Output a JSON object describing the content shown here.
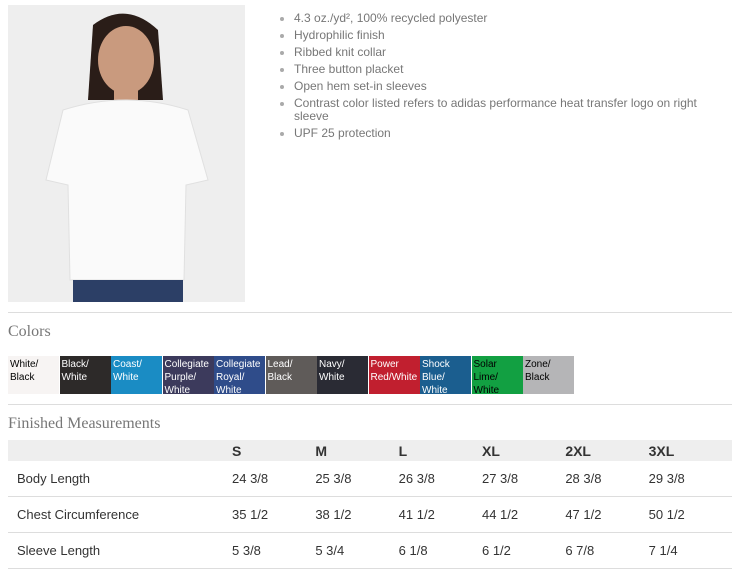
{
  "features": [
    "4.3 oz./yd², 100% recycled polyester",
    "Hydrophilic finish",
    "Ribbed knit collar",
    "Three button placket",
    "Open hem set-in sleeves",
    "Contrast color listed refers to adidas performance heat transfer logo on right sleeve",
    "UPF 25 protection"
  ],
  "colors_title": "Colors",
  "colors": [
    {
      "label": "White/ Black",
      "hex": "#f7f4f3",
      "text": "#000"
    },
    {
      "label": "Black/ White",
      "hex": "#2d2a29",
      "text": "#fff"
    },
    {
      "label": "Coast/ White",
      "hex": "#1a8cc4",
      "text": "#fff"
    },
    {
      "label": "Collegiate Purple/ White",
      "hex": "#3c3a5c",
      "text": "#fff"
    },
    {
      "label": "Collegiate Royal/ White",
      "hex": "#2f4c8a",
      "text": "#fff"
    },
    {
      "label": "Lead/ Black",
      "hex": "#5f5b59",
      "text": "#fff"
    },
    {
      "label": "Navy/ White",
      "hex": "#2a2b34",
      "text": "#fff"
    },
    {
      "label": "Power Red/White",
      "hex": "#c11f2f",
      "text": "#fff"
    },
    {
      "label": "Shock Blue/ White",
      "hex": "#1b5e8f",
      "text": "#fff"
    },
    {
      "label": "Solar Lime/ White",
      "hex": "#12a042",
      "text": "#000"
    },
    {
      "label": "Zone/ Black",
      "hex": "#b5b5b7",
      "text": "#000"
    }
  ],
  "measurements_title": "Finished Measurements",
  "measurements": {
    "sizes": [
      "S",
      "M",
      "L",
      "XL",
      "2XL",
      "3XL"
    ],
    "rows": [
      {
        "label": "Body Length",
        "values": [
          "24 3/8",
          "25 3/8",
          "26 3/8",
          "27 3/8",
          "28 3/8",
          "29 3/8"
        ]
      },
      {
        "label": "Chest Circumference",
        "values": [
          "35 1/2",
          "38 1/2",
          "41 1/2",
          "44 1/2",
          "47 1/2",
          "50 1/2"
        ]
      },
      {
        "label": "Sleeve Length",
        "values": [
          "5 3/8",
          "5 3/4",
          "6 1/8",
          "6 1/2",
          "6 7/8",
          "7 1/4"
        ]
      }
    ]
  }
}
